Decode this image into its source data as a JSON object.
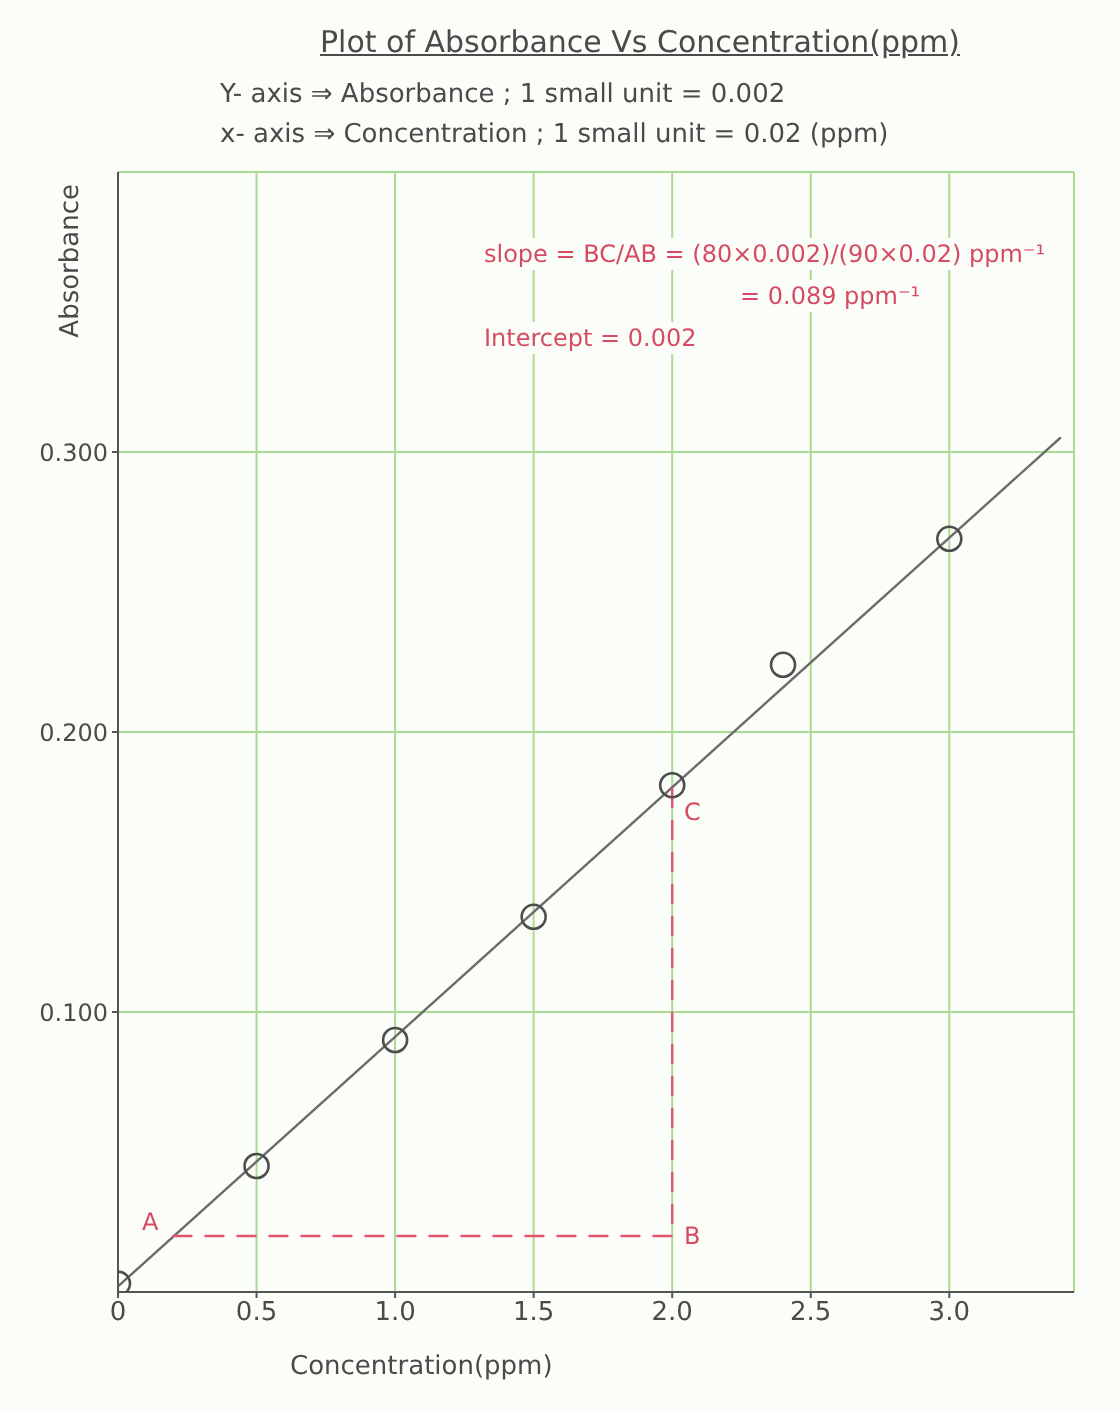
{
  "chart_data": {
    "type": "scatter",
    "title": "Plot of Absorbance Vs Concentration(ppm)",
    "subtitle": "Y- axis ⇒ Absorbance ; 1 small unit = 0.002\nx- axis ⇒ Concentration ; 1 small unit = 0.02 (ppm)",
    "xlabel": "Concentration(ppm)",
    "ylabel": "Absorbance",
    "annotations": [
      "slope = BC/AB = (80×0.002)/(90×0.02) ppm⁻¹",
      "= 0.089 ppm⁻¹",
      "Intercept = 0.002",
      "A",
      "B",
      "C"
    ],
    "series": [
      {
        "color": "#4d4d4d",
        "marker": "circle",
        "x": [
          0,
          0.5,
          1.0,
          1.5,
          2.0,
          2.4,
          3.0
        ],
        "values": [
          0.003,
          0.045,
          0.09,
          0.134,
          0.181,
          0.224,
          0.269
        ]
      },
      {
        "type": "line",
        "color": "#6b6b6b",
        "marker": "none",
        "line_style": "solid",
        "x": [
          0,
          3.4
        ],
        "values": [
          0.002,
          0.305
        ]
      },
      {
        "type": "line",
        "color": "#e0566e",
        "marker": "none",
        "line_style": "dashed",
        "x": [
          0.2,
          2.0,
          2.0
        ],
        "values": [
          0.02,
          0.02,
          0.18
        ]
      }
    ],
    "xlim": [
      0,
      3.45
    ],
    "xticks": [
      0,
      0.5,
      {
        "value": 1,
        "label": "1.0"
      },
      1.5,
      {
        "value": 2,
        "label": "2.0"
      },
      2.5,
      {
        "value": 3,
        "label": "3.0"
      }
    ],
    "ylim": [
      0,
      0.4
    ],
    "yticks": [
      {
        "value": 0.1,
        "label": "0.100"
      },
      {
        "value": 0.2,
        "label": "0.200"
      },
      {
        "value": 0.3,
        "label": "0.300"
      }
    ],
    "grid": true
  }
}
